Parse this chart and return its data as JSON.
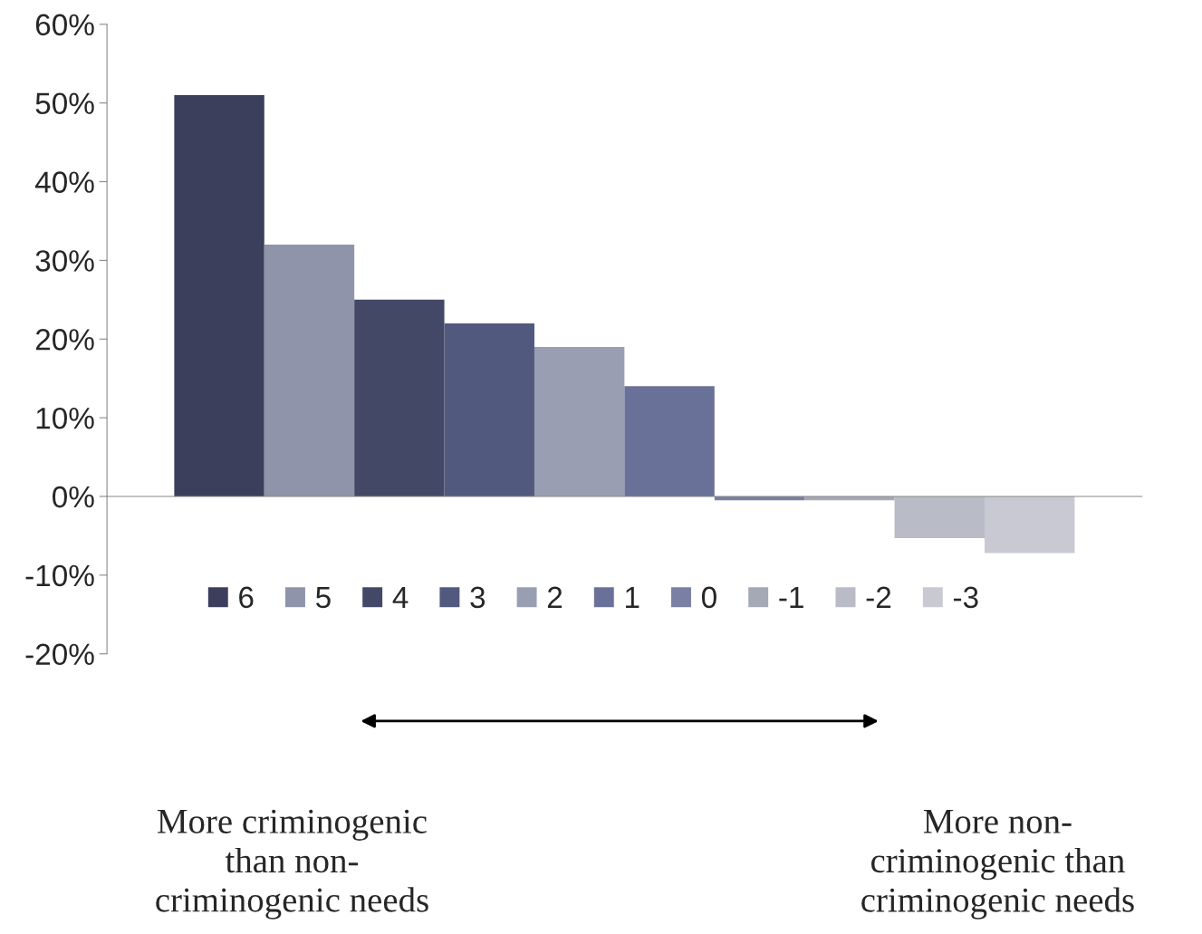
{
  "chart_data": {
    "type": "bar",
    "categories": [
      null
    ],
    "series": [
      {
        "name": "6",
        "color": "#3b3f5c",
        "values": [
          51
        ]
      },
      {
        "name": "5",
        "color": "#9094aa",
        "values": [
          32
        ]
      },
      {
        "name": "4",
        "color": "#434866",
        "values": [
          25
        ]
      },
      {
        "name": "3",
        "color": "#52597e",
        "values": [
          22
        ]
      },
      {
        "name": "2",
        "color": "#9a9eb2",
        "values": [
          19
        ]
      },
      {
        "name": "1",
        "color": "#6a7199",
        "values": [
          14
        ]
      },
      {
        "name": "0",
        "color": "#7a80a4",
        "values": [
          -0.5
        ]
      },
      {
        "name": "-1",
        "color": "#a5a8b5",
        "values": [
          -0.5
        ]
      },
      {
        "name": "-2",
        "color": "#b9bbc6",
        "values": [
          -5.3
        ]
      },
      {
        "name": "-3",
        "color": "#c8c9d2",
        "values": [
          -7.2
        ]
      }
    ],
    "ylim": [
      -20,
      60
    ],
    "yticks": [
      {
        "value": -20,
        "label": "-20%"
      },
      {
        "value": -10,
        "label": "-10%"
      },
      {
        "value": 0,
        "label": "0%"
      },
      {
        "value": 10,
        "label": "10%"
      },
      {
        "value": 20,
        "label": "20%"
      },
      {
        "value": 30,
        "label": "30%"
      },
      {
        "value": 40,
        "label": "40%"
      },
      {
        "value": 50,
        "label": "50%"
      },
      {
        "value": 60,
        "label": "60%"
      }
    ],
    "legend": "bottom",
    "annotations": [
      "More criminogenic\nthan non-\ncriminogenic needs",
      "More non-\ncriminogenic than\ncriminogenic needs"
    ]
  }
}
